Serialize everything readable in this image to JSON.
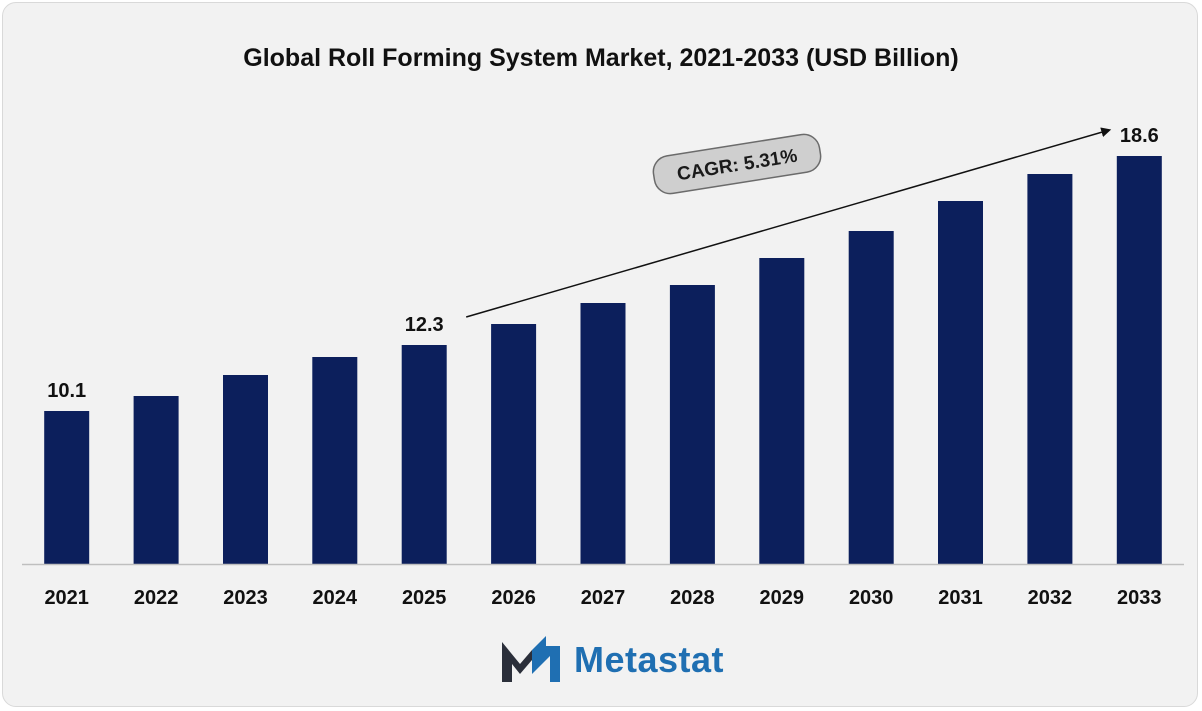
{
  "chart_data": {
    "type": "bar",
    "title": "Global Roll Forming System Market, 2021-2033 (USD Billion)",
    "xlabel": "",
    "ylabel": "",
    "categories": [
      "2021",
      "2022",
      "2023",
      "2024",
      "2025",
      "2026",
      "2027",
      "2028",
      "2029",
      "2030",
      "2031",
      "2032",
      "2033"
    ],
    "values": [
      10.1,
      10.6,
      11.3,
      11.9,
      12.3,
      13.0,
      13.7,
      14.3,
      15.2,
      16.1,
      17.1,
      18.0,
      18.6
    ],
    "data_labels": [
      {
        "category": "2021",
        "text": "10.1"
      },
      {
        "category": "2025",
        "text": "12.3"
      },
      {
        "category": "2033",
        "text": "18.6"
      }
    ],
    "annotation": {
      "text": "CAGR: 5.31%",
      "from": "2025",
      "to": "2033"
    },
    "ylim": [
      0,
      20.0
    ],
    "grid": false,
    "legend": "none",
    "colors": {
      "bar": "#0c1f5c",
      "axis": "#bfbfbf",
      "label": "#111111",
      "annotation_fill": "#cfcfcf",
      "annotation_border": "#6b6b6b"
    }
  },
  "brand": {
    "name": "Metastat",
    "icon": "metastat-m-logo-icon",
    "colors": {
      "dark": "#2b2f3a",
      "blue": "#1f6fb2"
    }
  }
}
